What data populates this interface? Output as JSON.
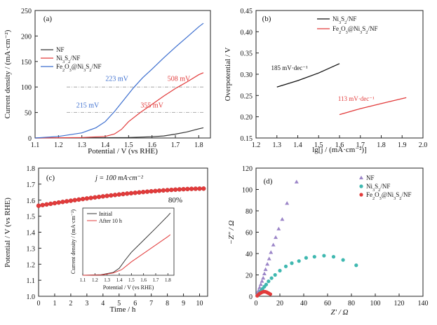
{
  "chart_data": [
    {
      "type": "line",
      "panel_label": "(a)",
      "xlabel": "Potential / V (vs RHE)",
      "ylabel": "Current density / (mA·cm⁻²)",
      "xlim": [
        1.1,
        1.85
      ],
      "ylim": [
        0,
        250
      ],
      "xticks": [
        "1.1",
        "1.2",
        "1.3",
        "1.4",
        "1.5",
        "1.6",
        "1.7",
        "1.8"
      ],
      "yticks": [
        "0",
        "50",
        "100",
        "150",
        "200",
        "250"
      ],
      "legend": [
        {
          "main": "NF",
          "sub": "",
          "rest": ""
        },
        {
          "main": "Ni",
          "sub": "3",
          "rest": "S",
          "sub2": "2",
          "tail": "/NF"
        },
        {
          "main": "Fe",
          "sub": "2",
          "rest": "O",
          "sub2": "3",
          "tail": "@Ni",
          "sub3": "3",
          "tail2": "S",
          "sub4": "2",
          "tail3": "/NF"
        }
      ],
      "legend_placement": "top-left",
      "series": [
        {
          "color": "#333333",
          "points": [
            [
              1.1,
              0
            ],
            [
              1.3,
              0.3
            ],
            [
              1.5,
              1
            ],
            [
              1.6,
              2.5
            ],
            [
              1.65,
              4
            ],
            [
              1.7,
              7.5
            ],
            [
              1.75,
              12
            ],
            [
              1.8,
              18
            ],
            [
              1.82,
              20
            ]
          ]
        },
        {
          "color": "#e23b3b",
          "points": [
            [
              1.1,
              0
            ],
            [
              1.3,
              1
            ],
            [
              1.4,
              3
            ],
            [
              1.44,
              8
            ],
            [
              1.47,
              17
            ],
            [
              1.5,
              32
            ],
            [
              1.55,
              50
            ],
            [
              1.6,
              66
            ],
            [
              1.65,
              82
            ],
            [
              1.7,
              97
            ],
            [
              1.75,
              110
            ],
            [
              1.8,
              124
            ],
            [
              1.82,
              128
            ]
          ]
        },
        {
          "color": "#3d6fcf",
          "points": [
            [
              1.1,
              0
            ],
            [
              1.2,
              3
            ],
            [
              1.3,
              10
            ],
            [
              1.36,
              20
            ],
            [
              1.4,
              32
            ],
            [
              1.44,
              52
            ],
            [
              1.48,
              75
            ],
            [
              1.52,
              98
            ],
            [
              1.56,
              118
            ],
            [
              1.6,
              135
            ],
            [
              1.65,
              157
            ],
            [
              1.7,
              178
            ],
            [
              1.75,
              198
            ],
            [
              1.8,
              218
            ],
            [
              1.82,
              225
            ]
          ]
        }
      ],
      "reference_lines": [
        50,
        100
      ],
      "annotations": [
        {
          "text": "223 mV",
          "x": 1.45,
          "y": 112,
          "color": "#3d6fcf"
        },
        {
          "text": "508 mV",
          "x": 1.715,
          "y": 112,
          "color": "#e23b3b"
        },
        {
          "text": "215 mV",
          "x": 1.325,
          "y": 60,
          "color": "#3d6fcf"
        },
        {
          "text": "355 mV",
          "x": 1.6,
          "y": 60,
          "color": "#e23b3b"
        }
      ]
    },
    {
      "type": "line",
      "panel_label": "(b)",
      "xlabel": "lg[j / (mA·cm⁻²)]",
      "ylabel": "Overpotential / V",
      "xlim": [
        1.2,
        2.0
      ],
      "ylim": [
        0.15,
        0.45
      ],
      "xticks": [
        "1.2",
        "1.3",
        "1.4",
        "1.5",
        "1.6",
        "1.7",
        "1.8",
        "1.9",
        "2.0"
      ],
      "yticks": [
        "0.15",
        "0.20",
        "0.25",
        "0.30",
        "0.35",
        "0.40",
        "0.45"
      ],
      "legend": [
        {
          "main": "Ni",
          "sub": "3",
          "rest": "S",
          "sub2": "2",
          "tail": "/NF"
        },
        {
          "main": "Fe",
          "sub": "2",
          "rest": "O",
          "sub2": "3",
          "tail": "@Ni",
          "sub3": "3",
          "tail2": "S",
          "sub4": "2",
          "tail3": "/NF"
        }
      ],
      "legend_placement": "top-right",
      "series": [
        {
          "color": "#111111",
          "points": [
            [
              1.3,
              0.27
            ],
            [
              1.4,
              0.285
            ],
            [
              1.5,
              0.303
            ],
            [
              1.6,
              0.325
            ]
          ]
        },
        {
          "color": "#e23b3b",
          "points": [
            [
              1.6,
              0.205
            ],
            [
              1.7,
              0.219
            ],
            [
              1.8,
              0.231
            ],
            [
              1.92,
              0.245
            ]
          ]
        }
      ],
      "annotations": [
        {
          "text": "185 mV·dec⁻¹",
          "x": 1.36,
          "y": 0.31,
          "color": "#111111"
        },
        {
          "text": "113 mV·dec⁻¹",
          "x": 1.68,
          "y": 0.237,
          "color": "#e23b3b"
        }
      ]
    },
    {
      "type": "scatter",
      "panel_label": "(c)",
      "xlabel": "Time / h",
      "ylabel": "Potential / V (vs RHE)",
      "xlim": [
        0,
        10.5
      ],
      "ylim": [
        1.0,
        1.8
      ],
      "xticks": [
        "0",
        "1",
        "2",
        "3",
        "4",
        "5",
        "6",
        "7",
        "8",
        "9",
        "10"
      ],
      "yticks": [
        "1.0",
        "1.1",
        "1.2",
        "1.3",
        "1.4",
        "1.5",
        "1.6",
        "1.7",
        "1.8"
      ],
      "condition_label": "j = 100 mA·cm⁻²",
      "retention_label": "80%",
      "series": [
        {
          "color": "#e23b3b",
          "start": 0.0,
          "end": 10.25,
          "step": 0.25,
          "y_start": 1.565,
          "y_end": 1.672
        }
      ],
      "inset": {
        "xlabel": "Potential / V (vs RHE)",
        "ylabel": "Current density / (mA·cm⁻²)",
        "xlim": [
          1.1,
          1.85
        ],
        "ylim": [
          0,
          240
        ],
        "xticks": [
          "1.1",
          "1.2",
          "1.3",
          "1.4",
          "1.5",
          "1.6",
          "1.7",
          "1.8"
        ],
        "legend": [
          "Initial",
          "After 10 h"
        ],
        "series": [
          {
            "color": "#333333",
            "points": [
              [
                1.1,
                0
              ],
              [
                1.25,
                2
              ],
              [
                1.35,
                10
              ],
              [
                1.4,
                25
              ],
              [
                1.45,
                55
              ],
              [
                1.5,
                82
              ],
              [
                1.6,
                125
              ],
              [
                1.7,
                168
              ],
              [
                1.8,
                212
              ],
              [
                1.82,
                222
              ]
            ]
          },
          {
            "color": "#e23b3b",
            "points": [
              [
                1.1,
                0
              ],
              [
                1.25,
                1
              ],
              [
                1.35,
                8
              ],
              [
                1.42,
                20
              ],
              [
                1.5,
                48
              ],
              [
                1.6,
                78
              ],
              [
                1.7,
                108
              ],
              [
                1.8,
                138
              ],
              [
                1.82,
                145
              ]
            ]
          }
        ]
      }
    },
    {
      "type": "scatter",
      "panel_label": "(d)",
      "xlabel": "Z′ / Ω",
      "ylabel": "−Z″ / Ω",
      "xlim": [
        0,
        140
      ],
      "ylim": [
        0,
        120
      ],
      "xticks": [
        "0",
        "20",
        "40",
        "60",
        "80",
        "100",
        "120",
        "140"
      ],
      "yticks": [
        "0",
        "20",
        "40",
        "60",
        "80",
        "100",
        "120"
      ],
      "legend": [
        {
          "main": "NF",
          "sub": "",
          "rest": ""
        },
        {
          "main": "Ni",
          "sub": "3",
          "rest": "S",
          "sub2": "2",
          "tail": "/NF"
        },
        {
          "main": "Fe",
          "sub": "2",
          "rest": "O",
          "sub2": "3",
          "tail": "@Ni",
          "sub3": "3",
          "tail2": "S",
          "sub4": "2",
          "tail3": "/NF"
        }
      ],
      "legend_placement": "top-right",
      "series": [
        {
          "color": "#9b85c8",
          "marker": "triangle",
          "points": [
            [
              1,
              1
            ],
            [
              1.5,
              3
            ],
            [
              2,
              5
            ],
            [
              3,
              8
            ],
            [
              4,
              11
            ],
            [
              5,
              14
            ],
            [
              6,
              17
            ],
            [
              7,
              21
            ],
            [
              8,
              25
            ],
            [
              9.5,
              30
            ],
            [
              11,
              35
            ],
            [
              12.5,
              41
            ],
            [
              14.5,
              48
            ],
            [
              16.5,
              55
            ],
            [
              19,
              63
            ],
            [
              22,
              72
            ],
            [
              26,
              87
            ],
            [
              34,
              107
            ]
          ]
        },
        {
          "color": "#3fb8b0",
          "marker": "circle",
          "points": [
            [
              2,
              1
            ],
            [
              3,
              3
            ],
            [
              4,
              5
            ],
            [
              5.5,
              7
            ],
            [
              7,
              9
            ],
            [
              8.5,
              11
            ],
            [
              10.5,
              14
            ],
            [
              13,
              17
            ],
            [
              16,
              20
            ],
            [
              20,
              24
            ],
            [
              25,
              28
            ],
            [
              30,
              31
            ],
            [
              36,
              33
            ],
            [
              42,
              36
            ],
            [
              49,
              37
            ],
            [
              57,
              38
            ],
            [
              65,
              37
            ],
            [
              73,
              34
            ],
            [
              84,
              29
            ]
          ]
        },
        {
          "color": "#e23b3b",
          "marker": "circle",
          "points": [
            [
              1,
              0.5
            ],
            [
              2,
              1.5
            ],
            [
              3,
              2.5
            ],
            [
              4,
              3.2
            ],
            [
              5,
              3.8
            ],
            [
              6,
              4.2
            ],
            [
              7,
              4.3
            ],
            [
              8,
              4.2
            ],
            [
              9,
              3.8
            ],
            [
              10,
              3.2
            ],
            [
              11,
              2.6
            ],
            [
              12,
              2
            ]
          ]
        }
      ]
    }
  ]
}
